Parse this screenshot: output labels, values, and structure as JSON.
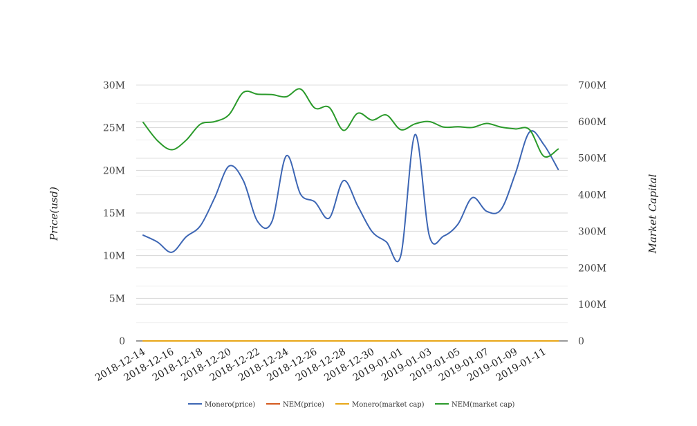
{
  "chart_data": {
    "type": "line",
    "title": "",
    "ylabel": "Price(usd)",
    "y2label": "Market Capital",
    "ylim": [
      0,
      30000000
    ],
    "y2lim": [
      0,
      700000000
    ],
    "yticks": [
      "0",
      "5M",
      "10M",
      "15M",
      "20M",
      "25M",
      "30M"
    ],
    "y2ticks": [
      "0",
      "100M",
      "200M",
      "300M",
      "400M",
      "500M",
      "600M",
      "700M"
    ],
    "xtick_labels": [
      "2018-12-14",
      "2018-12-16",
      "2018-12-18",
      "2018-12-20",
      "2018-12-22",
      "2018-12-24",
      "2018-12-26",
      "2018-12-28",
      "2018-12-30",
      "2019-01-01",
      "2019-01-03",
      "2019-01-05",
      "2019-01-07",
      "2019-01-09",
      "2019-01-11"
    ],
    "x": [
      "2018-12-14",
      "2018-12-15",
      "2018-12-16",
      "2018-12-17",
      "2018-12-18",
      "2018-12-19",
      "2018-12-20",
      "2018-12-21",
      "2018-12-22",
      "2018-12-23",
      "2018-12-24",
      "2018-12-25",
      "2018-12-26",
      "2018-12-27",
      "2018-12-28",
      "2018-12-29",
      "2018-12-30",
      "2018-12-31",
      "2019-01-01",
      "2019-01-02",
      "2019-01-03",
      "2019-01-04",
      "2019-01-05",
      "2019-01-06",
      "2019-01-07",
      "2019-01-08",
      "2019-01-09",
      "2019-01-10",
      "2019-01-11",
      "2019-01-12"
    ],
    "legend_position": "bottom",
    "grid": true,
    "series": [
      {
        "name": "Monero(price)",
        "axis": "left",
        "color": "#3d66b4",
        "values": [
          12400000,
          11600000,
          10400000,
          12200000,
          13500000,
          16800000,
          20500000,
          18800000,
          14000000,
          14000000,
          21700000,
          17200000,
          16300000,
          14400000,
          18800000,
          15800000,
          12800000,
          11600000,
          10000000,
          24200000,
          12300000,
          12300000,
          13700000,
          16800000,
          15200000,
          15400000,
          19600000,
          24500000,
          23000000,
          20100000
        ]
      },
      {
        "name": "NEM(price)",
        "axis": "left",
        "color": "#d45a1e",
        "values": [
          0.3,
          0.3,
          0.3,
          0.3,
          0.3,
          0.3,
          0.3,
          0.3,
          0.3,
          0.3,
          0.3,
          0.3,
          0.3,
          0.3,
          0.3,
          0.3,
          0.3,
          0.3,
          0.3,
          0.3,
          0.3,
          0.3,
          0.3,
          0.3,
          0.3,
          0.3,
          0.3,
          0.3,
          0.3,
          0.3
        ]
      },
      {
        "name": "Monero(market cap)",
        "axis": "left",
        "color": "#e8a617",
        "values": [
          4000,
          4000,
          4000,
          4000,
          4000,
          4000,
          4000,
          4000,
          4000,
          4000,
          4000,
          4000,
          4000,
          4000,
          4000,
          4000,
          4000,
          4000,
          4000,
          4000,
          4000,
          4000,
          4000,
          4000,
          4000,
          4000,
          4000,
          4000,
          4000,
          4000
        ]
      },
      {
        "name": "NEM(market cap)",
        "axis": "right",
        "color": "#2a9a2a",
        "values": [
          598000000,
          548000000,
          523000000,
          549000000,
          593000000,
          600000000,
          619000000,
          680000000,
          675000000,
          674000000,
          668000000,
          689000000,
          637000000,
          639000000,
          576000000,
          623000000,
          604000000,
          618000000,
          578000000,
          594000000,
          600000000,
          585000000,
          586000000,
          584000000,
          595000000,
          585000000,
          580000000,
          578000000,
          505000000,
          525000000
        ]
      }
    ]
  }
}
